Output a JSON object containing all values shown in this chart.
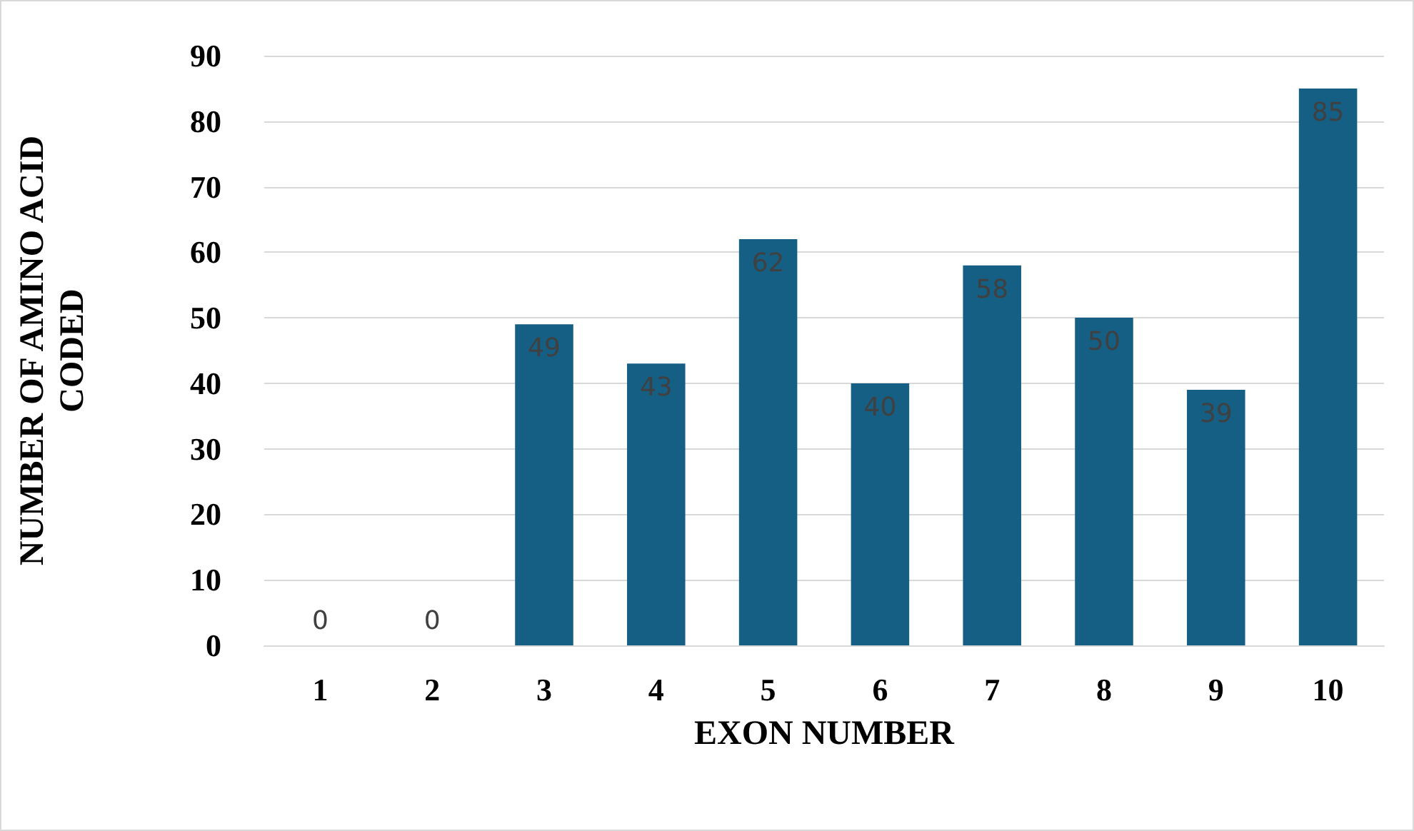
{
  "chart_data": {
    "type": "bar",
    "xlabel": "EXON NUMBER",
    "ylabel": "NUMBER OF AMINO ACID\nCODED",
    "categories": [
      "1",
      "2",
      "3",
      "4",
      "5",
      "6",
      "7",
      "8",
      "9",
      "10"
    ],
    "values": [
      0,
      0,
      49,
      43,
      62,
      40,
      58,
      50,
      39,
      85
    ],
    "color": "#155f84",
    "ylim": [
      0,
      90
    ],
    "yticks": [
      0,
      10,
      20,
      30,
      40,
      50,
      60,
      70,
      80,
      90
    ],
    "grid": "y",
    "data_labels": true
  }
}
